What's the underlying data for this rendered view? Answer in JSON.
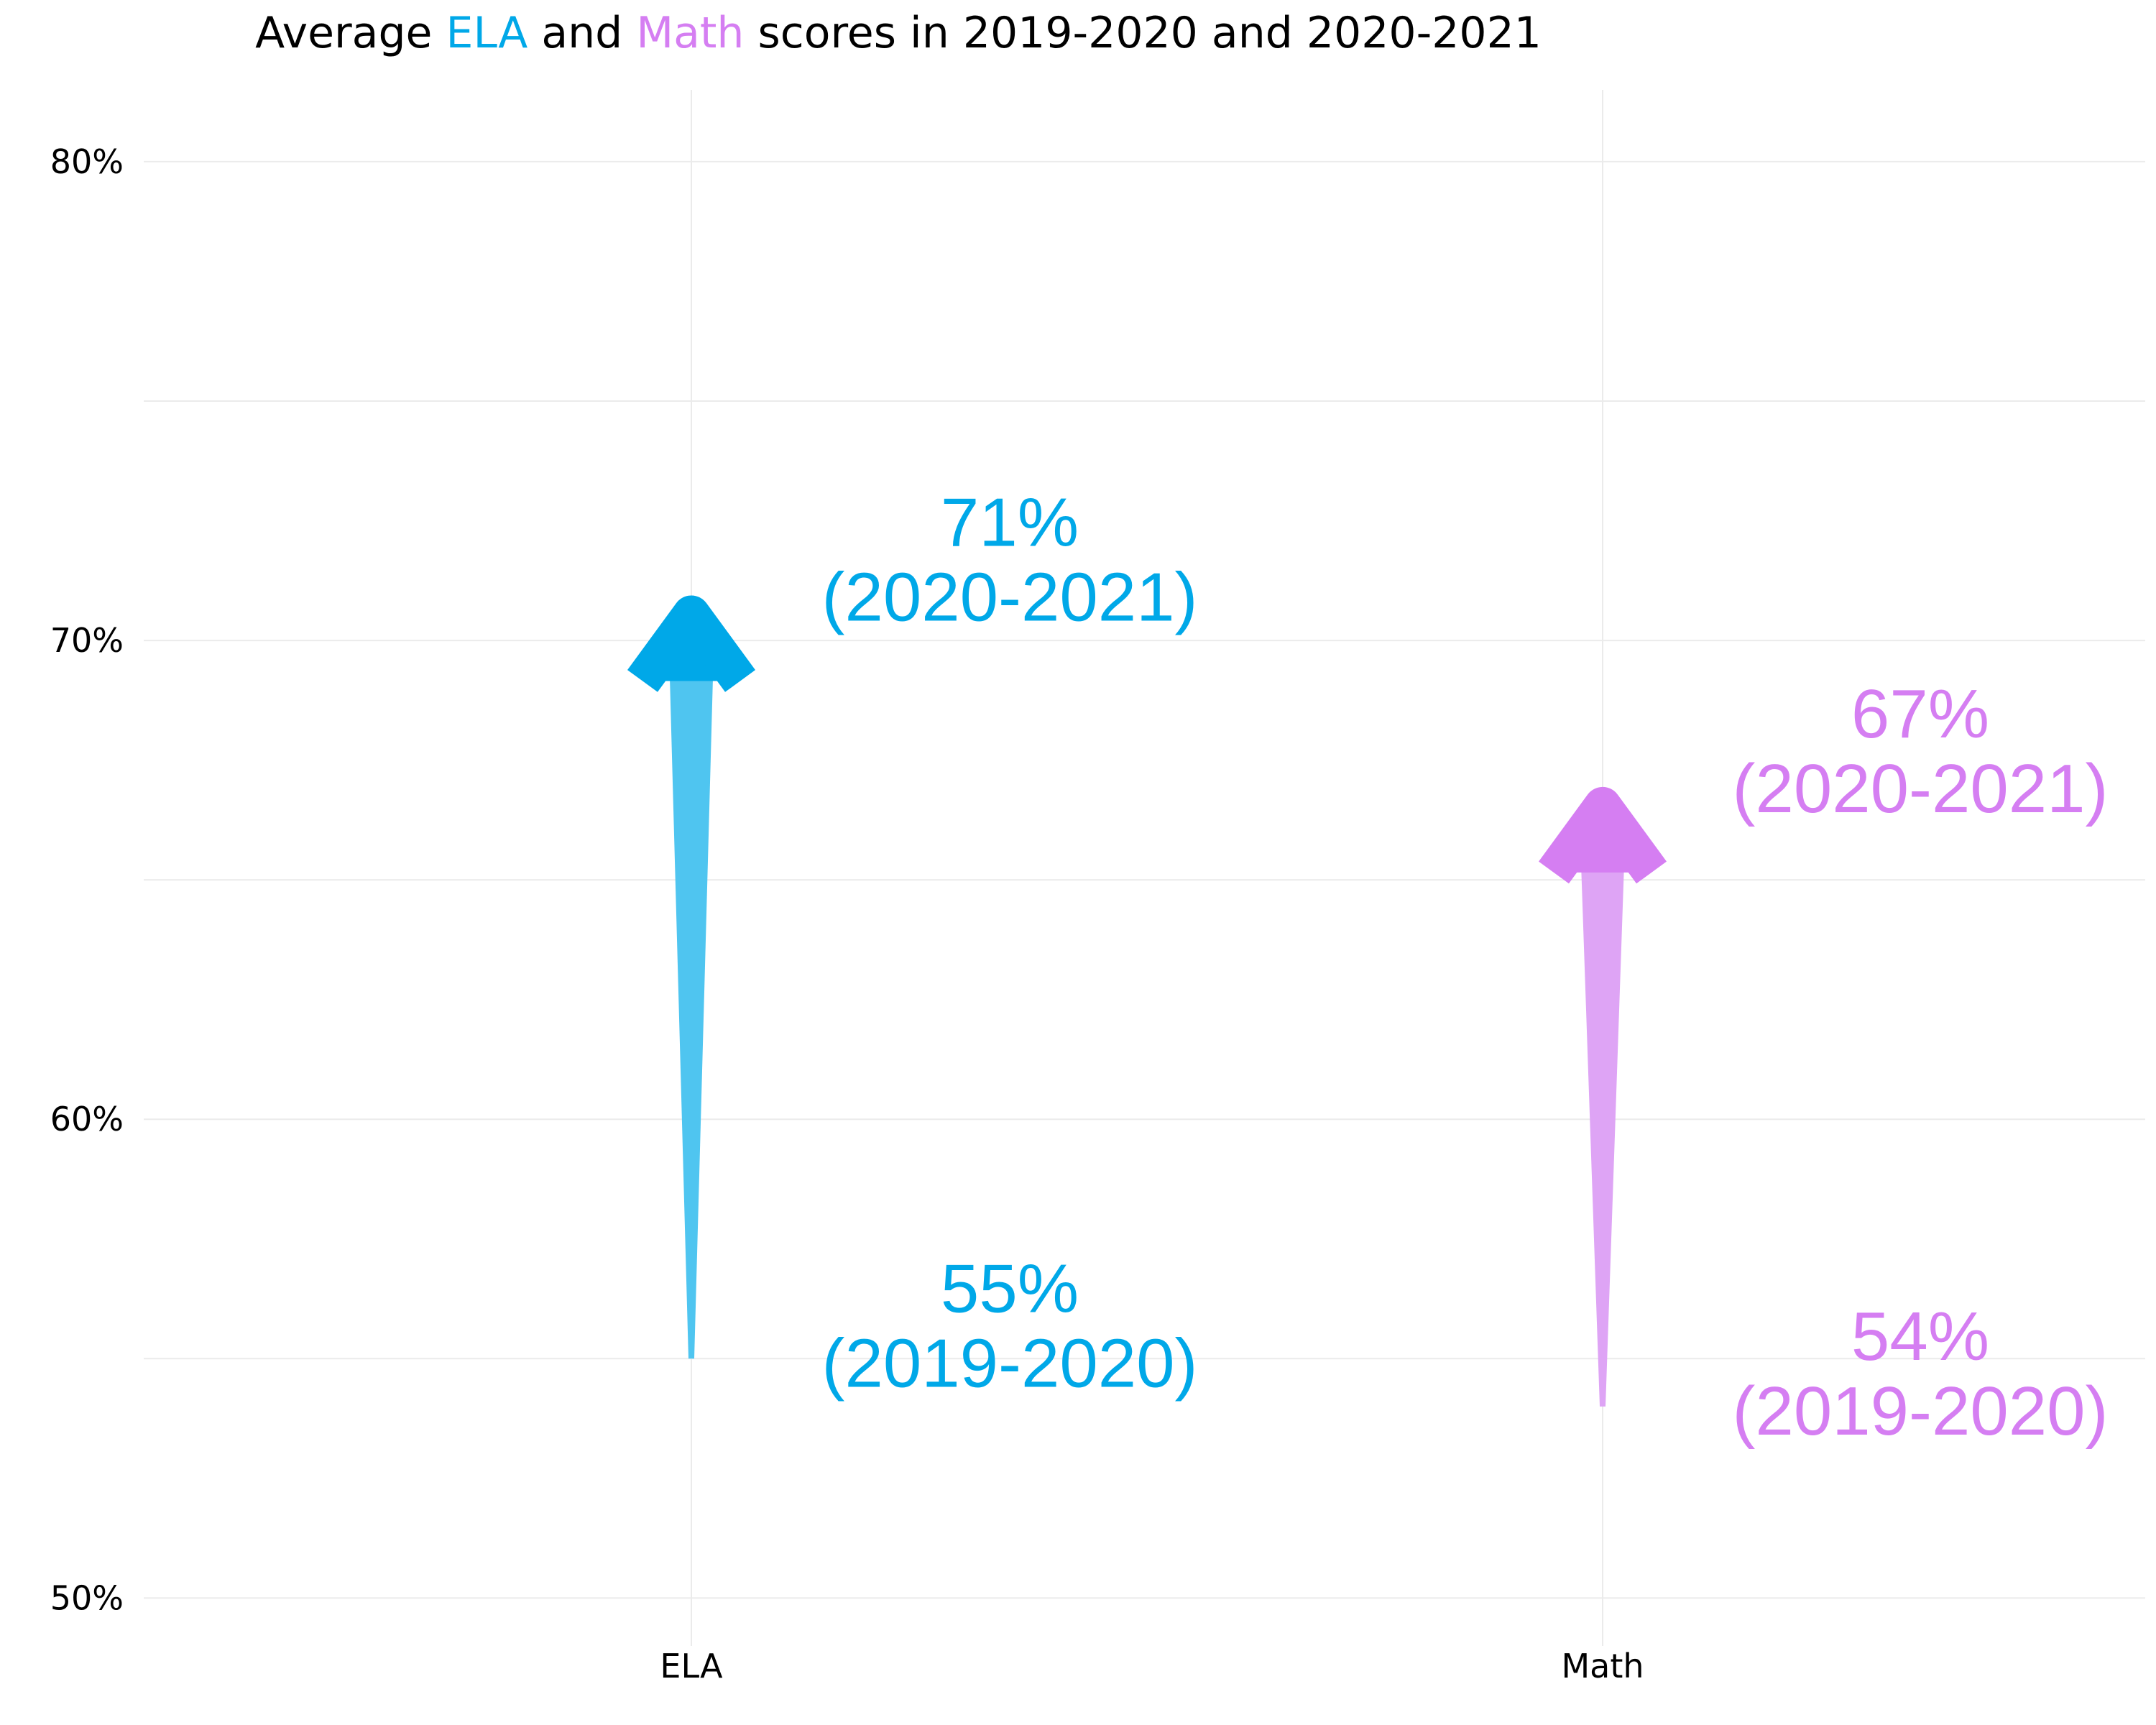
{
  "chart_data": {
    "type": "arrow",
    "title": {
      "parts": [
        {
          "text": "Average ",
          "color": "#000000"
        },
        {
          "text": "ELA",
          "color": "#00A8E8"
        },
        {
          "text": " and ",
          "color": "#000000"
        },
        {
          "text": "Math",
          "color": "#D57EF2"
        },
        {
          "text": " scores in 2019-2020 and 2020-2021",
          "color": "#000000"
        }
      ]
    },
    "xlabel": "",
    "ylabel": "",
    "categories": [
      "ELA",
      "Math"
    ],
    "ylim": [
      49,
      81.5
    ],
    "y_ticks": [
      50,
      60,
      70,
      80
    ],
    "y_tick_labels": [
      "50%",
      "60%",
      "70%",
      "80%"
    ],
    "grid": true,
    "series": [
      {
        "category": "ELA",
        "start": 55,
        "end": 71,
        "color": "#00A8E8",
        "shaft_color": "#4FC5F0",
        "start_label": {
          "value": "55%",
          "period": "(2019-2020)"
        },
        "end_label": {
          "value": "71%",
          "period": "(2020-2021)"
        }
      },
      {
        "category": "Math",
        "start": 54,
        "end": 67,
        "color": "#D57EF2",
        "shaft_color": "#DEA4F5",
        "start_label": {
          "value": "54%",
          "period": "(2019-2020)"
        },
        "end_label": {
          "value": "67%",
          "period": "(2020-2021)"
        }
      }
    ]
  }
}
